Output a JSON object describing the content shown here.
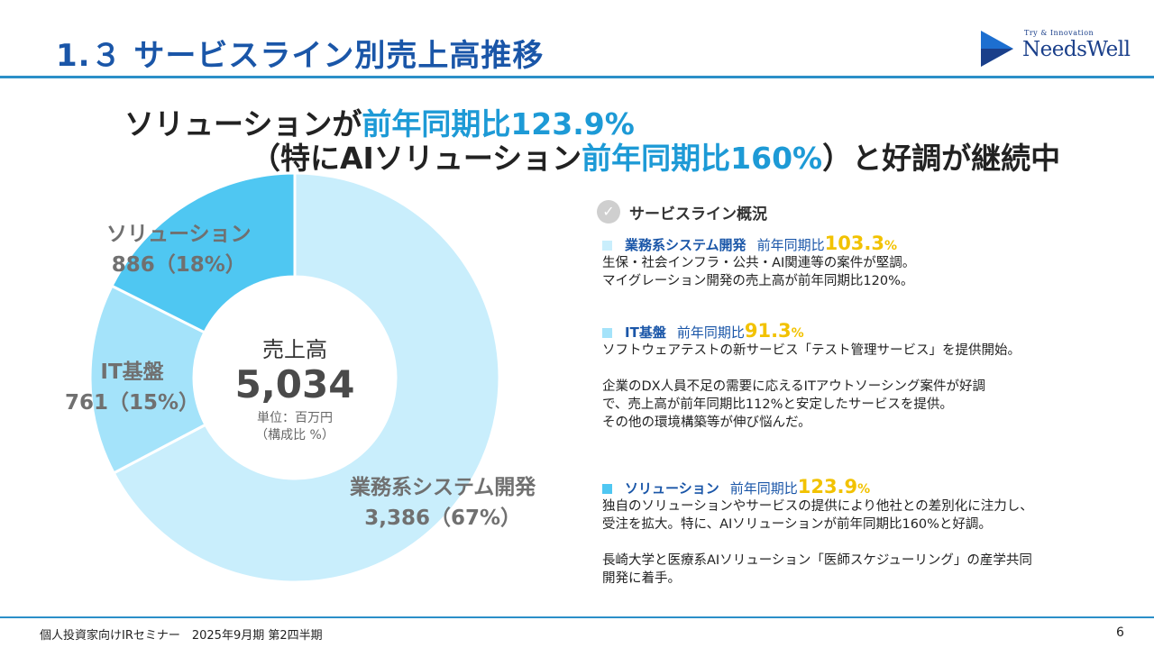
{
  "header": {
    "title": "1.３ サービスライン別売上高推移"
  },
  "logo": {
    "tagline": "Try & Innovation",
    "name": "NeedsWell",
    "brand_color": "#1a3f8a"
  },
  "headline": {
    "line1_text": "ソリューションが",
    "line1_accent": "前年同期比123.9%",
    "line2_open": "（特にAIソリューション",
    "line2_accent": "前年同期比160%",
    "line2_close": "）と好調が継続中"
  },
  "chart_data": {
    "type": "pie",
    "title": "",
    "center_label": "売上高",
    "center_value": "5,034",
    "unit_line1": "単位：百万円",
    "unit_line2": "（構成比 %）",
    "categories": [
      "業務系システム開発",
      "IT基盤",
      "ソリューション"
    ],
    "values": [
      3386,
      761,
      886
    ],
    "percents": [
      67,
      15,
      18
    ],
    "colors": [
      "#c9eefc",
      "#a4e3fa",
      "#4fc7f2"
    ],
    "labels": [
      {
        "name": "業務系システム開発",
        "value": "3,386（67%）"
      },
      {
        "name": "IT基盤",
        "value": "761（15%）"
      },
      {
        "name": "ソリューション",
        "value": "886（18%）"
      }
    ]
  },
  "overview": {
    "title": "サービスライン概況",
    "services": [
      {
        "name": "業務系システム開発",
        "yoy_label": "前年同期比",
        "yoy_value": "103.3",
        "yoy_suffix": "%",
        "square_color": "#c9eefc",
        "lines": [
          "生保・社会インフラ・公共・AI関連等の案件が堅調。",
          "マイグレーション開発の売上高が前年同期比120%。"
        ]
      },
      {
        "name": "IT基盤",
        "yoy_label": "前年同期比",
        "yoy_value": "91.3",
        "yoy_suffix": "%",
        "square_color": "#a4e3fa",
        "lines": [
          "ソフトウェアテストの新サービス「テスト管理サービス」を提供開始。",
          "",
          "企業のDX人員不足の需要に応えるITアウトソーシング案件が好調",
          "で、売上高が前年同期比112%と安定したサービスを提供。",
          "その他の環境構築等が伸び悩んだ。"
        ]
      },
      {
        "name": "ソリューション",
        "yoy_label": "前年同期比",
        "yoy_value": "123.9",
        "yoy_suffix": "%",
        "square_color": "#4fc7f2",
        "lines": [
          "独自のソリューションやサービスの提供により他社との差別化に注力し、",
          "受注を拡大。特に、AIソリューションが前年同期比160%と好調。",
          "",
          "長崎大学と医療系AIソリューション「医師スケジューリング」の産学共同",
          "開発に着手。"
        ]
      }
    ]
  },
  "footer": {
    "text": "個人投資家向けIRセミナー　2025年9月期 第2四半期",
    "page": "6"
  }
}
